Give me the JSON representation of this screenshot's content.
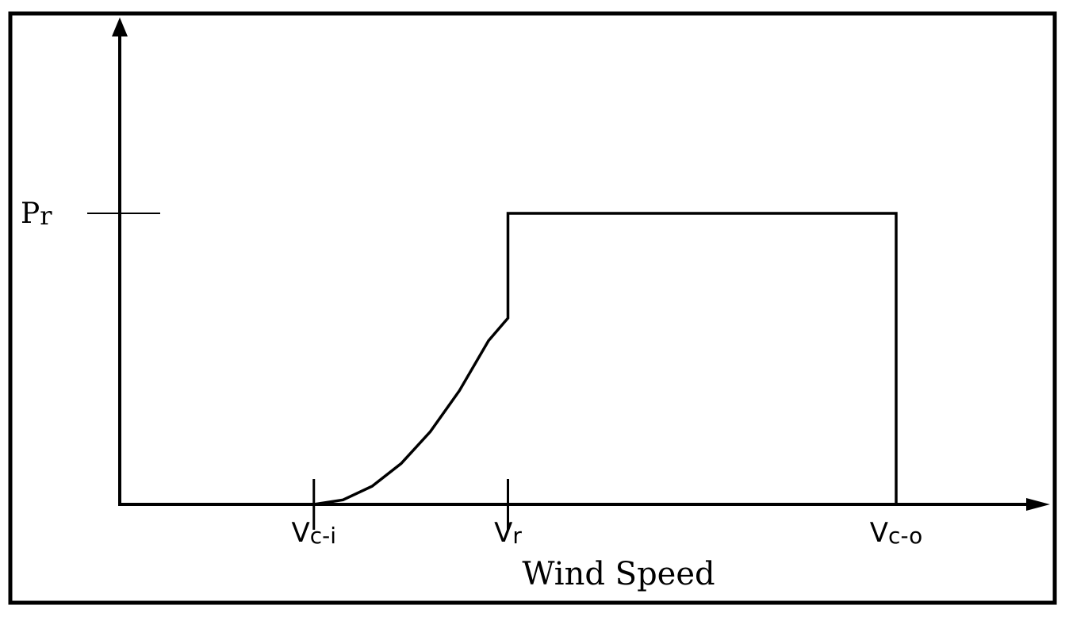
{
  "chart_data": {
    "type": "line",
    "title": "",
    "xlabel": "Wind Speed",
    "ylabel": "",
    "grid": false,
    "xlim": [
      0,
      1
    ],
    "ylim": [
      0,
      1
    ],
    "x_ticks": [
      {
        "id": "vci",
        "main": "V",
        "sub": "c-i",
        "value": 0.25
      },
      {
        "id": "vr",
        "main": "V",
        "sub": "r",
        "value": 0.5
      },
      {
        "id": "vco",
        "main": "V",
        "sub": "c-o",
        "value": 1.0
      }
    ],
    "y_ticks": [
      {
        "id": "pr",
        "main": "P",
        "sub": "r",
        "value": 1.0
      }
    ],
    "series": [
      {
        "points": [
          [
            0.25,
            0
          ],
          [
            0.2875,
            0.0156
          ],
          [
            0.325,
            0.0625
          ],
          [
            0.3625,
            0.1406
          ],
          [
            0.4,
            0.25
          ],
          [
            0.4375,
            0.3906
          ],
          [
            0.475,
            0.5625
          ],
          [
            0.5,
            0.64
          ],
          [
            0.5,
            1.0
          ],
          [
            1.0,
            1.0
          ],
          [
            1.0,
            0
          ]
        ]
      }
    ],
    "colors": {
      "line": "#000000",
      "background": "#ffffff"
    }
  }
}
